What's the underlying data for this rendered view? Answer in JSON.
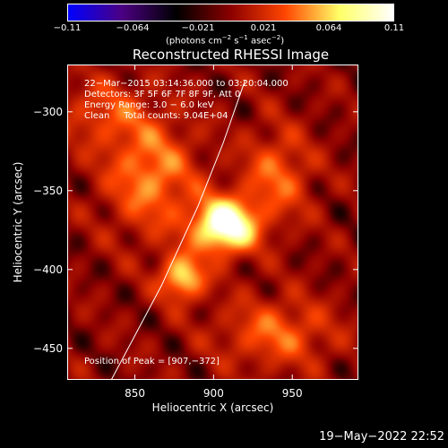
{
  "colorbar": {
    "ticks": [
      "−0.11",
      "−0.064",
      "−0.021",
      "0.021",
      "0.064",
      "0.11"
    ],
    "unit_prefix": "(photons cm",
    "unit_exp1": "−2",
    "unit_mid1": " s",
    "unit_exp2": "−1",
    "unit_mid2": " asec",
    "unit_exp3": "−2",
    "unit_suffix": ")",
    "colors": [
      "#0000ff",
      "#4b0082",
      "#000000",
      "#8b0000",
      "#ff4500",
      "#ffff66",
      "#ffffff"
    ]
  },
  "info": {
    "line1": "22−Mar−2015 03:14:36.000 to 03:20:04.000",
    "line2": "Detectors: 3F 5F 6F 7F 8F 9F, Att 0",
    "line3": "Energy Range: 3.0 − 6.0 keV",
    "line4": "Clean     Total counts: 9.04E+04",
    "peak": "Position of Peak = [907,−372]"
  },
  "footer": {
    "timestamp": "19−May−2022 22:52"
  },
  "chart_data": {
    "type": "heatmap",
    "title": "Reconstructed RHESSI Image",
    "xlabel": "Heliocentric X (arcsec)",
    "ylabel": "Heliocentric Y (arcsec)",
    "xlim": [
      807,
      992
    ],
    "ylim": [
      -470,
      -270
    ],
    "xticks": [
      850,
      900,
      950
    ],
    "yticks": [
      -300,
      -350,
      -400,
      -450
    ],
    "peak": [
      907,
      -372
    ],
    "clim": [
      -0.11,
      0.11
    ],
    "sources": [
      {
        "x": 907,
        "y": -372,
        "amp": 0.11,
        "sx": 14,
        "sy": 12
      },
      {
        "x": 880,
        "y": -405,
        "amp": 0.07,
        "sx": 10,
        "sy": 10
      },
      {
        "x": 860,
        "y": -340,
        "amp": 0.05,
        "sx": 20,
        "sy": 25
      },
      {
        "x": 940,
        "y": -340,
        "amp": 0.04,
        "sx": 15,
        "sy": 20
      },
      {
        "x": 940,
        "y": -440,
        "amp": 0.04,
        "sx": 25,
        "sy": 15
      },
      {
        "x": 830,
        "y": -300,
        "amp": 0.03,
        "sx": 20,
        "sy": 15
      }
    ],
    "limb_points": [
      [
        835,
        -470
      ],
      [
        867,
        -410
      ],
      [
        890,
        -360
      ],
      [
        906,
        -320
      ],
      [
        920,
        -280
      ]
    ]
  }
}
